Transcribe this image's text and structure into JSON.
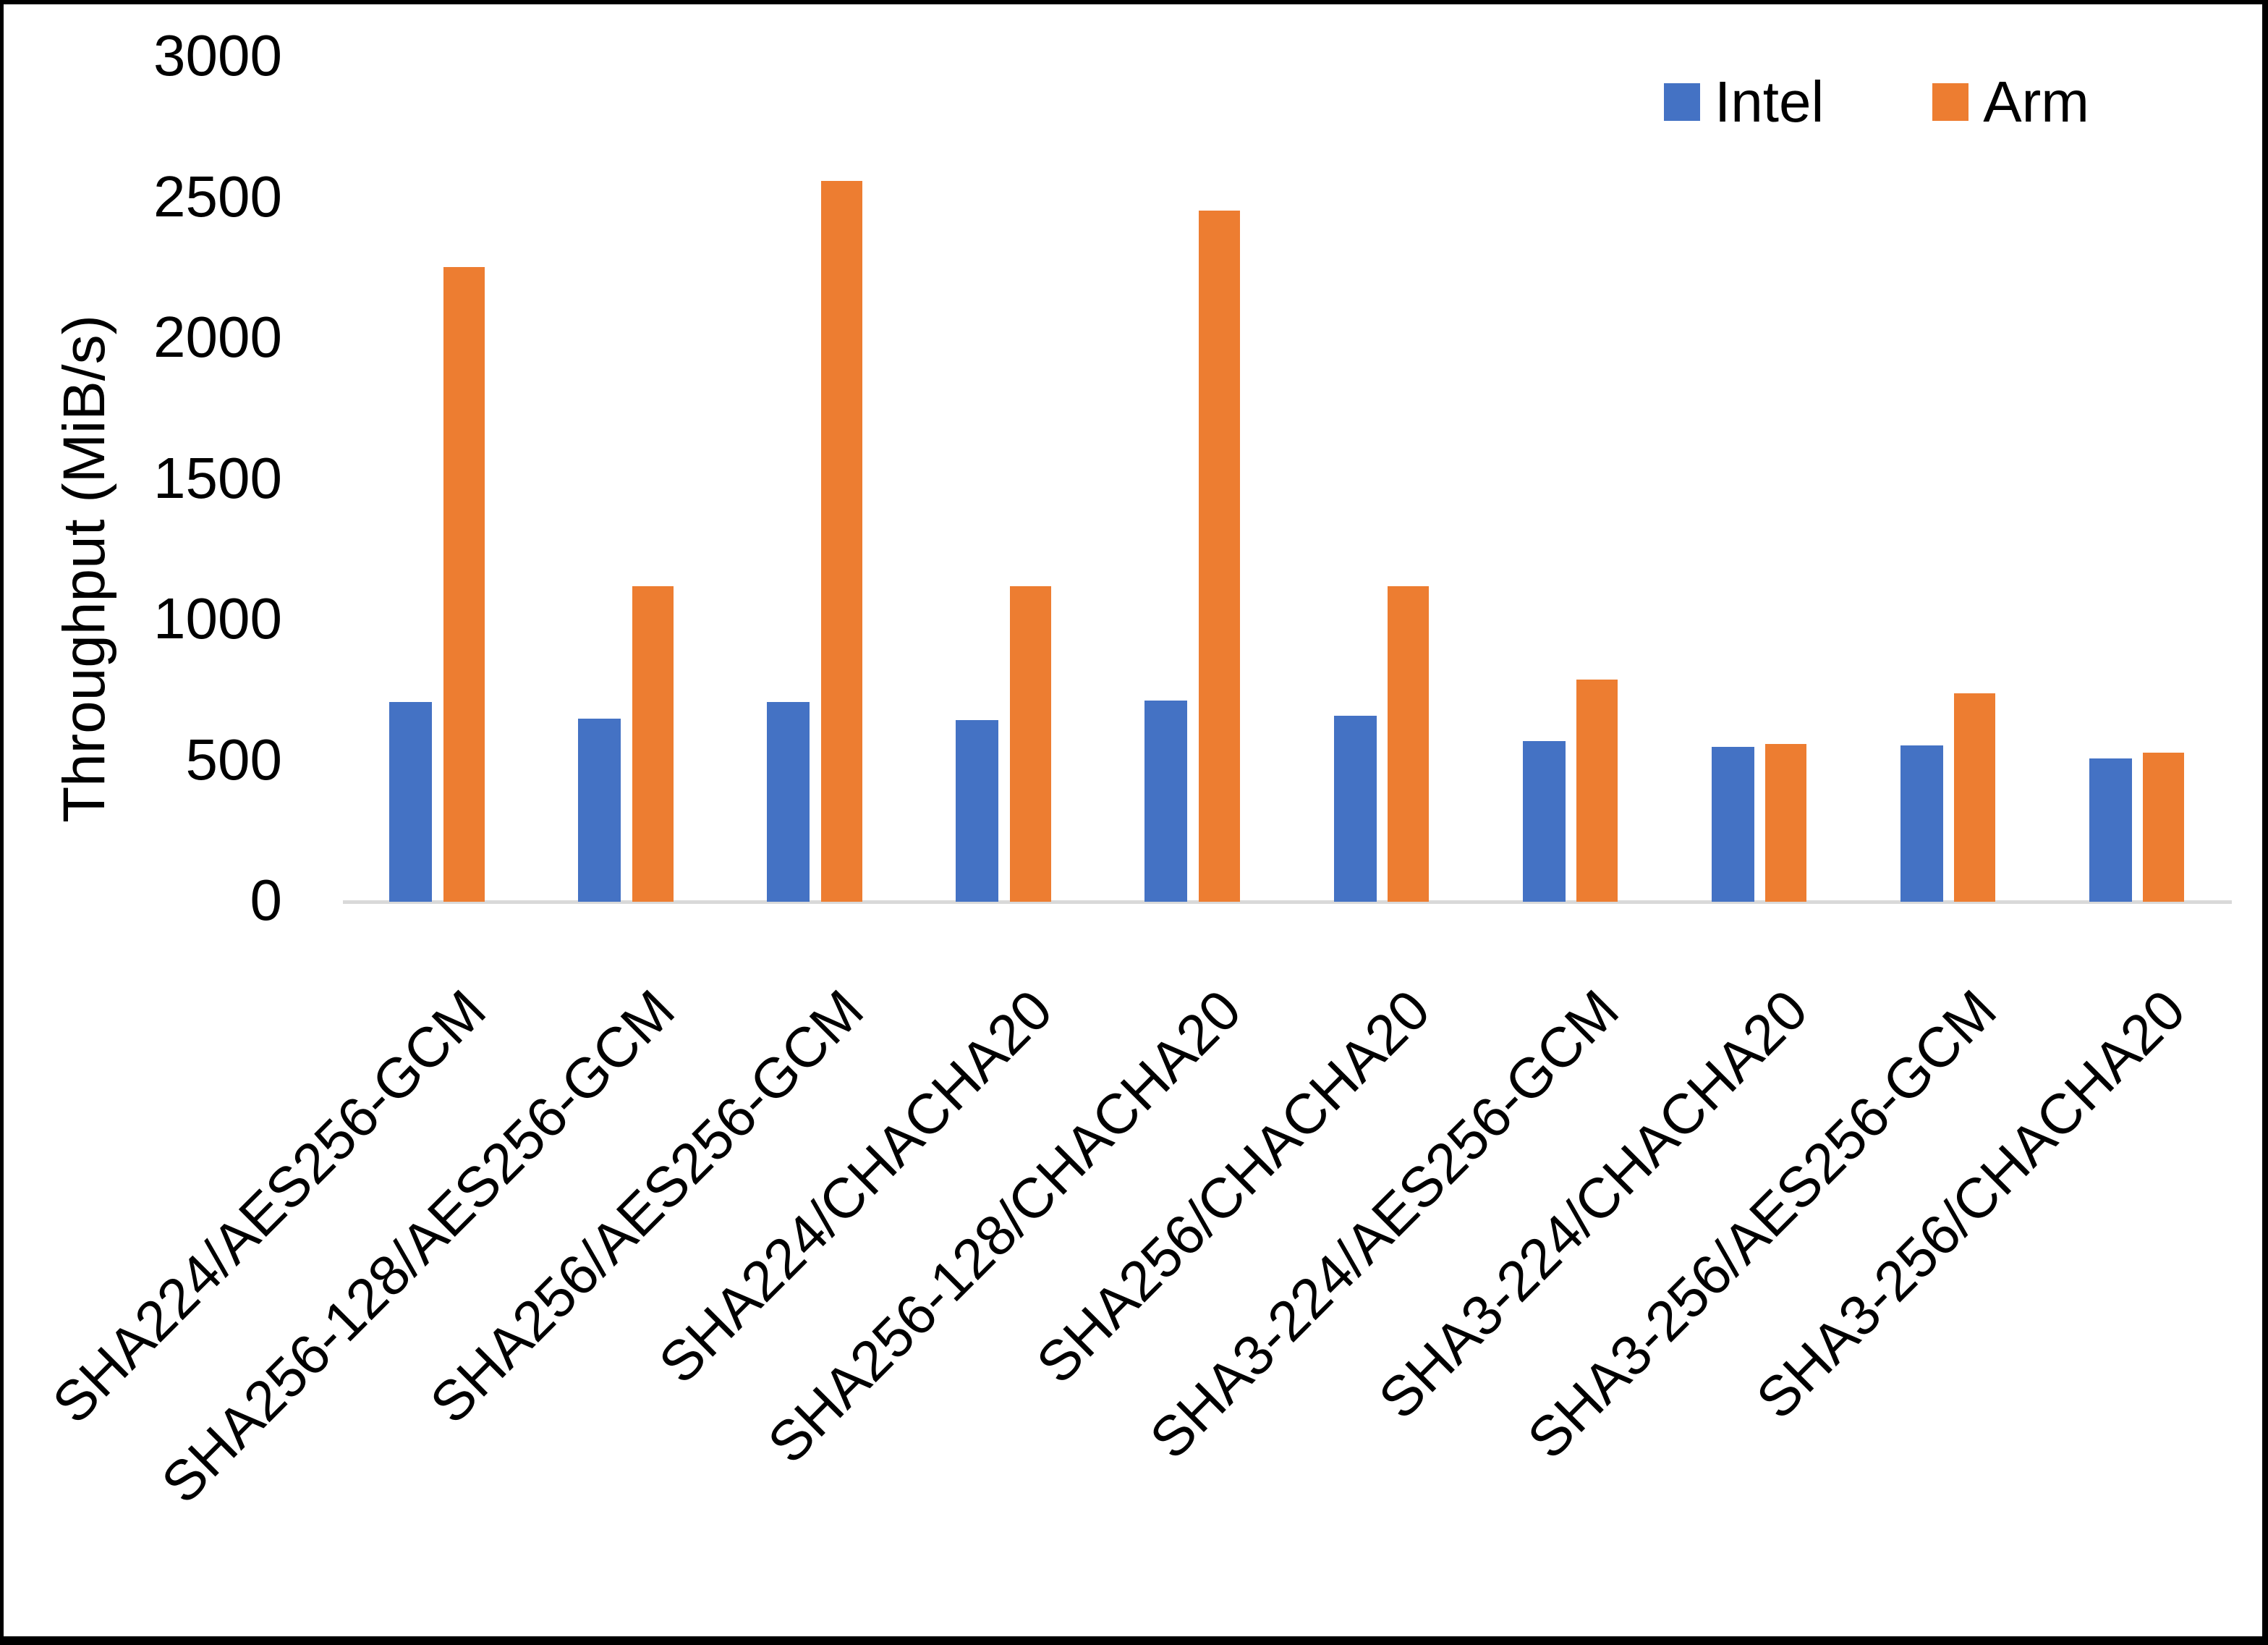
{
  "chart_data": {
    "type": "bar",
    "title": "",
    "xlabel": "",
    "ylabel": "Throughput (MiB/s)",
    "ylim": [
      0,
      3000
    ],
    "yticks": [
      0,
      500,
      1000,
      1500,
      2000,
      2500,
      3000
    ],
    "grid": false,
    "legend_position": "top-right",
    "categories": [
      "SHA224/AES256-GCM",
      "SHA256-128/AES256-GCM",
      "SHA256/AES256-GCM",
      "SHA224/CHACHA20",
      "SHA256-128/CHACHA20",
      "SHA256/CHACHA20",
      "SHA3-224/AES256-GCM",
      "SHA3-224/CHACHA20",
      "SHA3-256/AES256-GCM",
      "SHA3-256/CHACHA20"
    ],
    "series": [
      {
        "name": "Intel",
        "color": "#4472C4",
        "values": [
          710,
          650,
          710,
          645,
          715,
          660,
          570,
          550,
          555,
          510
        ]
      },
      {
        "name": "Arm",
        "color": "#ED7D31",
        "values": [
          2255,
          1120,
          2560,
          1120,
          2455,
          1120,
          790,
          560,
          740,
          530
        ]
      }
    ]
  },
  "colors": {
    "axis_line": "#D9D9D9",
    "text": "#000000",
    "background": "#FFFFFF",
    "frame": "#000000"
  }
}
